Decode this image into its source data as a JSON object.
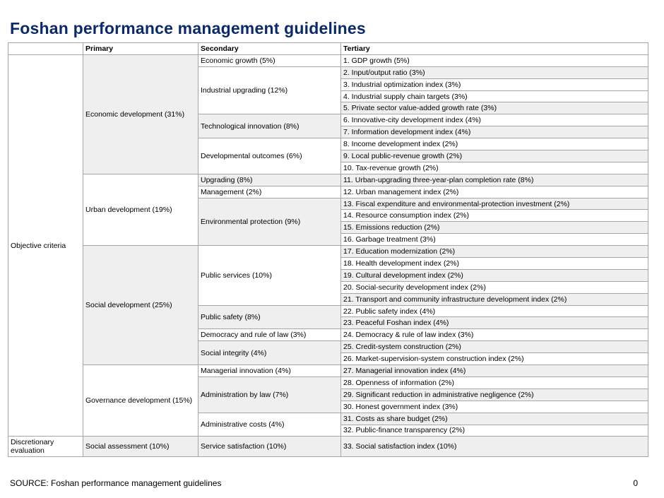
{
  "title": "Foshan performance management guidelines",
  "headers": {
    "category": "",
    "primary": "Primary",
    "secondary": "Secondary",
    "tertiary": "Tertiary"
  },
  "categories": {
    "objective": "Objective criteria",
    "discretionary": "Discretionary evaluation"
  },
  "primary": {
    "economic": "Economic development (31%)",
    "urban": "Urban development (19%)",
    "social": "Social development (25%)",
    "governance": "Governance development (15%)",
    "assessment": "Social assessment (10%)"
  },
  "secondary": {
    "econ_growth": "Economic growth (5%)",
    "ind_upgrading": "Industrial upgrading (12%)",
    "tech_innovation": "Technological innovation (8%)",
    "dev_outcomes": "Developmental outcomes (6%)",
    "upgrading": "Upgrading (8%)",
    "management": "Management (2%)",
    "env_protection": "Environmental protection (9%)",
    "public_services": "Public services (10%)",
    "public_safety": "Public safety (8%)",
    "democracy": "Democracy and rule of law (3%)",
    "integrity": "Social integrity (4%)",
    "mgr_innovation": "Managerial innovation (4%)",
    "admin_law": "Administration by law (7%)",
    "admin_costs": "Administrative costs (4%)",
    "service_satisfaction": "Service satisfaction (10%)"
  },
  "tertiary": [
    "1. GDP growth (5%)",
    "2. Input/output ratio (3%)",
    "3. Industrial optimization index (3%)",
    "4. Industrial supply chain targets (3%)",
    "5. Private sector value-added growth rate (3%)",
    "6. Innovative-city development index (4%)",
    "7. Information development index (4%)",
    "8. Income development index (2%)",
    "9. Local public-revenue growth (2%)",
    "10. Tax-revenue growth (2%)",
    "11. Urban-upgrading three-year-plan completion rate (8%)",
    "12. Urban management index (2%)",
    "13. Fiscal expenditure and environmental-protection investment (2%)",
    "14. Resource consumption index (2%)",
    "15. Emissions reduction (2%)",
    "16. Garbage treatment (3%)",
    "17. Education modernization (2%)",
    "18. Health development index (2%)",
    "19. Cultural development index (2%)",
    "20. Social-security development index (2%)",
    "21. Transport and community infrastructure development index (2%)",
    "22. Public safety index (4%)",
    "23. Peaceful Foshan index (4%)",
    "24. Democracy & rule of law index (3%)",
    "25. Credit-system construction (2%)",
    "26. Market-supervision-system construction index (2%)",
    "27. Managerial innovation index (4%)",
    "28. Openness of information (2%)",
    "29. Significant reduction in administrative negligence (2%)",
    "30. Honest government index (3%)",
    "31. Costs as share budget (2%)",
    "32. Public-finance transparency (2%)",
    "33. Social satisfaction index (10%)"
  ],
  "footer": {
    "source": "SOURCE: Foshan performance management guidelines",
    "page": "0"
  }
}
